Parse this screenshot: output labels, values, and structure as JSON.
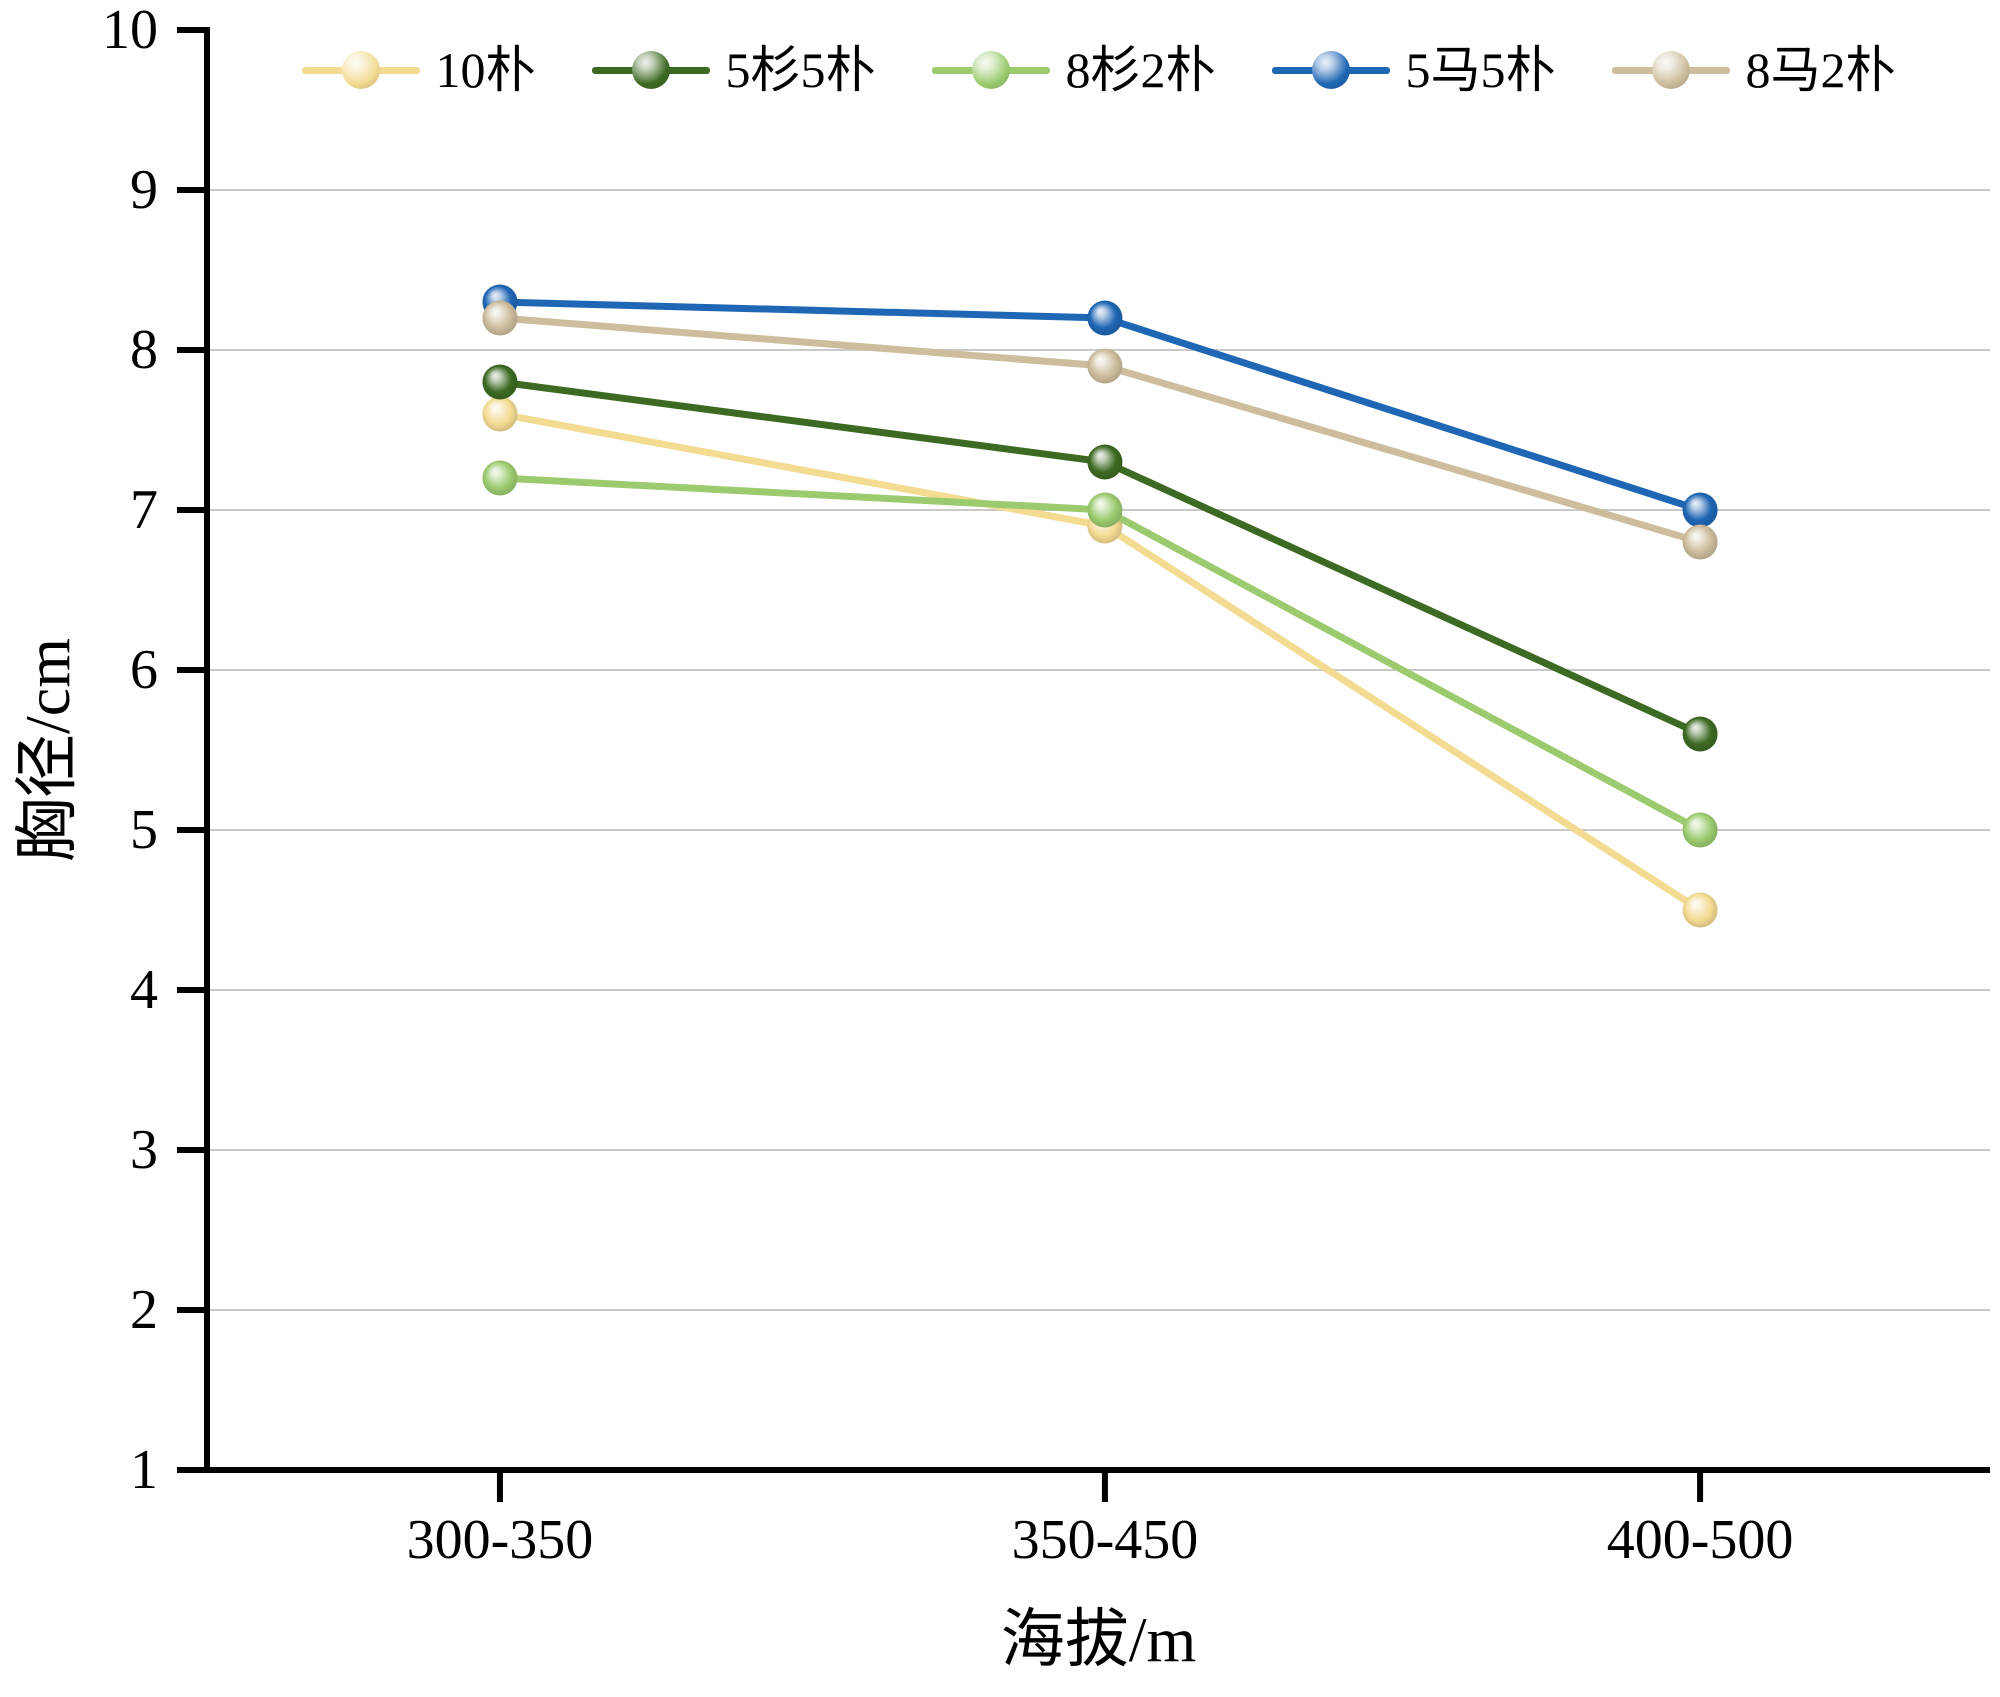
{
  "chart_data": {
    "type": "line",
    "title": "",
    "xlabel": "海拔/m",
    "ylabel": "胸径/cm",
    "categories": [
      "300-350",
      "350-450",
      "400-500"
    ],
    "series": [
      {
        "name": "10朴",
        "values": [
          7.6,
          6.9,
          4.5
        ],
        "color": "#f3db92"
      },
      {
        "name": "5杉5朴",
        "values": [
          7.8,
          7.3,
          5.6
        ],
        "color": "#3d6a22"
      },
      {
        "name": "8杉2朴",
        "values": [
          7.2,
          7.0,
          5.0
        ],
        "color": "#9ccb6f"
      },
      {
        "name": "5马5朴",
        "values": [
          8.3,
          8.2,
          7.0
        ],
        "color": "#1f66b4"
      },
      {
        "name": "8马2朴",
        "values": [
          8.2,
          7.9,
          6.8
        ],
        "color": "#cdbd9d"
      }
    ],
    "ylim": [
      1,
      10
    ],
    "ytick_step": 1,
    "y_tick_labels": [
      "1",
      "2",
      "3",
      "4",
      "5",
      "6",
      "7",
      "8",
      "9",
      "10"
    ],
    "grid": "horizontal",
    "grid_color": "#c9c9c9",
    "axis_color": "#000000",
    "legend_position": "top",
    "marker_style": "3d-ball"
  }
}
